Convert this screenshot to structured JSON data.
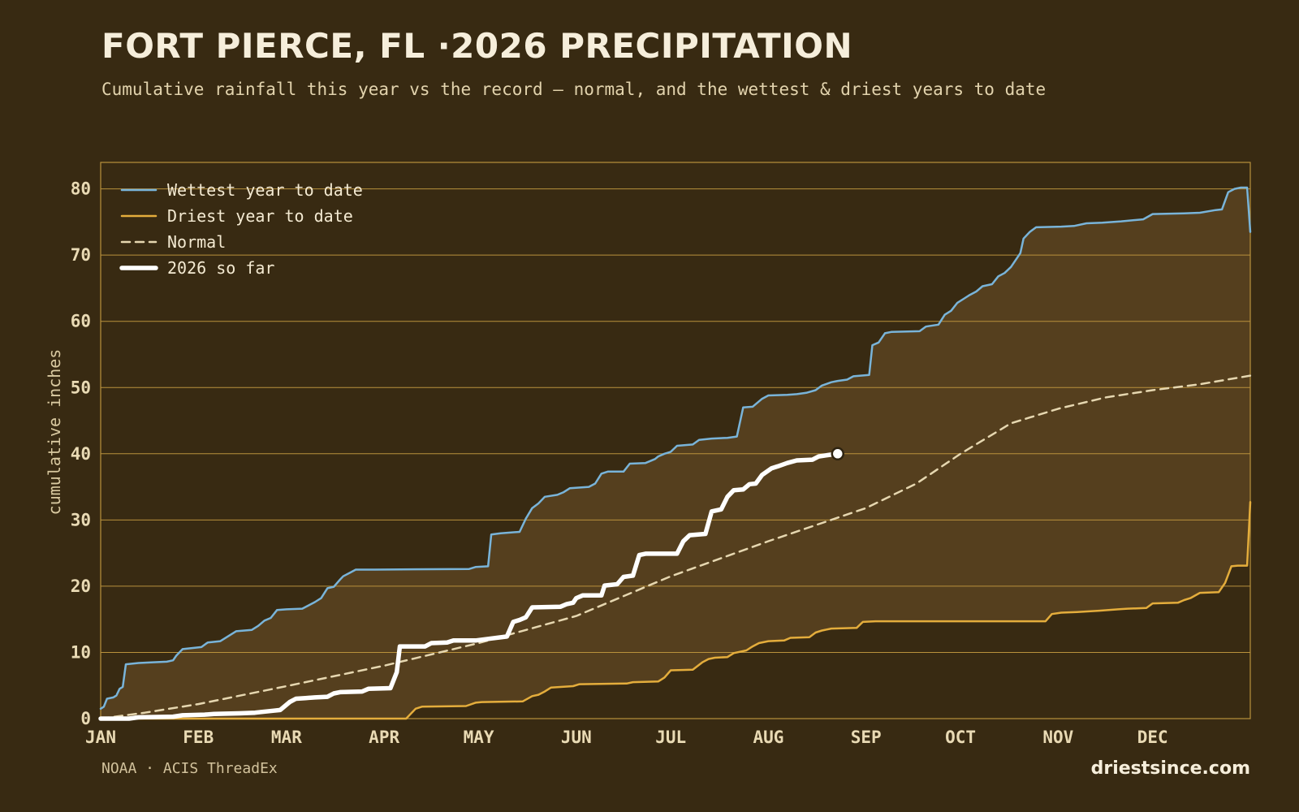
{
  "header": {
    "title": "FORT PIERCE, FL ·2026 PRECIPITATION",
    "subtitle": "Cumulative rainfall this year vs the record — normal, and the wettest & driest years to date"
  },
  "footer": {
    "source": "NOAA · ACIS ThreadEx",
    "brand": "driestsince.com"
  },
  "colors": {
    "wettest": "#79b4d9",
    "driest": "#e4ad3c",
    "normal": "#e6d7b0",
    "current": "#ffffff",
    "band": "#553f1e",
    "grid": "#b9913c",
    "background": "#382a12"
  },
  "chart_data": {
    "type": "line",
    "title": "FORT PIERCE, FL ·2026 PRECIPITATION",
    "subtitle": "Cumulative rainfall this year vs the record — normal, and the wettest & driest years to date",
    "ylabel": "cumulative inches",
    "xlabel": "",
    "x_unit": "day of year",
    "xlim": [
      1,
      366
    ],
    "ylim": [
      0,
      84
    ],
    "yticks": [
      0,
      10,
      20,
      30,
      40,
      50,
      60,
      70,
      80
    ],
    "month_ticks": [
      {
        "label": "JAN",
        "day": 1
      },
      {
        "label": "FEB",
        "day": 32
      },
      {
        "label": "MAR",
        "day": 60
      },
      {
        "label": "APR",
        "day": 91
      },
      {
        "label": "MAY",
        "day": 121
      },
      {
        "label": "JUN",
        "day": 152
      },
      {
        "label": "JUL",
        "day": 182
      },
      {
        "label": "AUG",
        "day": 213
      },
      {
        "label": "SEP",
        "day": 244
      },
      {
        "label": "OCT",
        "day": 274
      },
      {
        "label": "NOV",
        "day": 305
      },
      {
        "label": "DEC",
        "day": 335
      }
    ],
    "grid": "horizontal",
    "legend_position": "top-left",
    "series": [
      {
        "name": "Wettest year to date",
        "key": "wettest",
        "points": [
          [
            1,
            1.5
          ],
          [
            2,
            1.8
          ],
          [
            3,
            3.0
          ],
          [
            5,
            3.2
          ],
          [
            6,
            3.5
          ],
          [
            7,
            4.5
          ],
          [
            8,
            4.8
          ],
          [
            9,
            8.2
          ],
          [
            13,
            8.4
          ],
          [
            17,
            8.5
          ],
          [
            22,
            8.6
          ],
          [
            24,
            8.8
          ],
          [
            25,
            9.5
          ],
          [
            27,
            10.5
          ],
          [
            33,
            10.8
          ],
          [
            35,
            11.5
          ],
          [
            39,
            11.7
          ],
          [
            41,
            12.3
          ],
          [
            44,
            13.2
          ],
          [
            49,
            13.4
          ],
          [
            51,
            14.0
          ],
          [
            53,
            14.8
          ],
          [
            55,
            15.2
          ],
          [
            57,
            16.4
          ],
          [
            60,
            16.5
          ],
          [
            65,
            16.6
          ],
          [
            69,
            17.6
          ],
          [
            71,
            18.2
          ],
          [
            73,
            19.7
          ],
          [
            75,
            19.9
          ],
          [
            77,
            21.0
          ],
          [
            78,
            21.5
          ],
          [
            80,
            22.0
          ],
          [
            82,
            22.5
          ],
          [
            88,
            22.5
          ],
          [
            118,
            22.6
          ],
          [
            120,
            22.9
          ],
          [
            124,
            23.0
          ],
          [
            125,
            27.8
          ],
          [
            128,
            28.0
          ],
          [
            134,
            28.2
          ],
          [
            136,
            30.2
          ],
          [
            138,
            31.8
          ],
          [
            140,
            32.5
          ],
          [
            142,
            33.5
          ],
          [
            146,
            33.8
          ],
          [
            148,
            34.2
          ],
          [
            150,
            34.8
          ],
          [
            156,
            35.0
          ],
          [
            158,
            35.5
          ],
          [
            160,
            37.0
          ],
          [
            162,
            37.3
          ],
          [
            167,
            37.3
          ],
          [
            169,
            38.5
          ],
          [
            174,
            38.6
          ],
          [
            177,
            39.2
          ],
          [
            178,
            39.6
          ],
          [
            180,
            40.0
          ],
          [
            182,
            40.3
          ],
          [
            184,
            41.2
          ],
          [
            189,
            41.4
          ],
          [
            191,
            42.1
          ],
          [
            195,
            42.3
          ],
          [
            200,
            42.4
          ],
          [
            203,
            42.6
          ],
          [
            205,
            47.0
          ],
          [
            208,
            47.1
          ],
          [
            211,
            48.3
          ],
          [
            213,
            48.8
          ],
          [
            219,
            48.9
          ],
          [
            222,
            49.0
          ],
          [
            225,
            49.2
          ],
          [
            228,
            49.6
          ],
          [
            230,
            50.3
          ],
          [
            233,
            50.8
          ],
          [
            235,
            51.0
          ],
          [
            238,
            51.2
          ],
          [
            240,
            51.7
          ],
          [
            245,
            51.9
          ],
          [
            246,
            56.4
          ],
          [
            248,
            56.8
          ],
          [
            250,
            58.2
          ],
          [
            252,
            58.4
          ],
          [
            261,
            58.5
          ],
          [
            263,
            59.2
          ],
          [
            267,
            59.5
          ],
          [
            269,
            61.0
          ],
          [
            271,
            61.6
          ],
          [
            273,
            62.8
          ],
          [
            275,
            63.4
          ],
          [
            277,
            64.0
          ],
          [
            279,
            64.5
          ],
          [
            281,
            65.3
          ],
          [
            284,
            65.6
          ],
          [
            286,
            66.8
          ],
          [
            288,
            67.3
          ],
          [
            290,
            68.2
          ],
          [
            293,
            70.3
          ],
          [
            294,
            72.5
          ],
          [
            296,
            73.5
          ],
          [
            298,
            74.2
          ],
          [
            306,
            74.3
          ],
          [
            310,
            74.4
          ],
          [
            314,
            74.8
          ],
          [
            319,
            74.9
          ],
          [
            325,
            75.1
          ],
          [
            332,
            75.4
          ],
          [
            335,
            76.2
          ],
          [
            345,
            76.3
          ],
          [
            350,
            76.4
          ],
          [
            355,
            76.8
          ],
          [
            357,
            76.9
          ],
          [
            359,
            79.5
          ],
          [
            361,
            80.0
          ],
          [
            363,
            80.2
          ],
          [
            365,
            80.2
          ],
          [
            366,
            73.5
          ]
        ]
      },
      {
        "name": "Driest year to date",
        "key": "driest",
        "points": [
          [
            1,
            0.0
          ],
          [
            98,
            0.0
          ],
          [
            101,
            1.5
          ],
          [
            103,
            1.8
          ],
          [
            117,
            1.9
          ],
          [
            120,
            2.4
          ],
          [
            122,
            2.5
          ],
          [
            135,
            2.6
          ],
          [
            138,
            3.4
          ],
          [
            140,
            3.6
          ],
          [
            142,
            4.1
          ],
          [
            144,
            4.7
          ],
          [
            151,
            4.9
          ],
          [
            153,
            5.2
          ],
          [
            168,
            5.3
          ],
          [
            170,
            5.5
          ],
          [
            178,
            5.6
          ],
          [
            180,
            6.2
          ],
          [
            182,
            7.3
          ],
          [
            189,
            7.4
          ],
          [
            192,
            8.5
          ],
          [
            194,
            9.0
          ],
          [
            196,
            9.2
          ],
          [
            200,
            9.3
          ],
          [
            202,
            9.9
          ],
          [
            206,
            10.3
          ],
          [
            208,
            10.9
          ],
          [
            210,
            11.4
          ],
          [
            213,
            11.7
          ],
          [
            218,
            11.8
          ],
          [
            220,
            12.2
          ],
          [
            226,
            12.3
          ],
          [
            228,
            13.0
          ],
          [
            230,
            13.3
          ],
          [
            233,
            13.6
          ],
          [
            241,
            13.7
          ],
          [
            243,
            14.6
          ],
          [
            247,
            14.7
          ],
          [
            301,
            14.7
          ],
          [
            303,
            15.8
          ],
          [
            306,
            16.0
          ],
          [
            311,
            16.1
          ],
          [
            318,
            16.3
          ],
          [
            324,
            16.5
          ],
          [
            327,
            16.6
          ],
          [
            333,
            16.7
          ],
          [
            335,
            17.4
          ],
          [
            343,
            17.5
          ],
          [
            345,
            17.9
          ],
          [
            347,
            18.2
          ],
          [
            350,
            19.0
          ],
          [
            356,
            19.1
          ],
          [
            358,
            20.5
          ],
          [
            360,
            23.0
          ],
          [
            362,
            23.1
          ],
          [
            365,
            23.1
          ],
          [
            366,
            32.7
          ]
        ]
      },
      {
        "name": "Normal",
        "key": "normal",
        "points": [
          [
            1,
            0.0
          ],
          [
            15,
            0.9
          ],
          [
            32,
            2.2
          ],
          [
            60,
            4.9
          ],
          [
            91,
            8.0
          ],
          [
            121,
            11.4
          ],
          [
            152,
            15.5
          ],
          [
            182,
            21.5
          ],
          [
            213,
            26.8
          ],
          [
            244,
            31.8
          ],
          [
            260,
            35.5
          ],
          [
            274,
            40.0
          ],
          [
            290,
            44.6
          ],
          [
            305,
            46.8
          ],
          [
            320,
            48.5
          ],
          [
            335,
            49.6
          ],
          [
            350,
            50.5
          ],
          [
            366,
            51.8
          ]
        ]
      },
      {
        "name": "2026 so far",
        "key": "current",
        "points": [
          [
            1,
            0.0
          ],
          [
            10,
            0.0
          ],
          [
            13,
            0.2
          ],
          [
            24,
            0.3
          ],
          [
            27,
            0.5
          ],
          [
            34,
            0.6
          ],
          [
            37,
            0.7
          ],
          [
            45,
            0.8
          ],
          [
            50,
            0.9
          ],
          [
            52,
            1.0
          ],
          [
            56,
            1.2
          ],
          [
            58,
            1.3
          ],
          [
            61,
            2.5
          ],
          [
            63,
            3.0
          ],
          [
            66,
            3.1
          ],
          [
            69,
            3.2
          ],
          [
            73,
            3.3
          ],
          [
            75,
            3.8
          ],
          [
            77,
            4.0
          ],
          [
            84,
            4.1
          ],
          [
            86,
            4.5
          ],
          [
            93,
            4.6
          ],
          [
            95,
            7.0
          ],
          [
            96,
            10.9
          ],
          [
            104,
            10.9
          ],
          [
            106,
            11.4
          ],
          [
            111,
            11.5
          ],
          [
            113,
            11.8
          ],
          [
            120,
            11.8
          ],
          [
            125,
            12.1
          ],
          [
            130,
            12.4
          ],
          [
            132,
            14.6
          ],
          [
            134,
            14.9
          ],
          [
            136,
            15.3
          ],
          [
            138,
            16.8
          ],
          [
            147,
            16.9
          ],
          [
            149,
            17.3
          ],
          [
            151,
            17.5
          ],
          [
            152,
            18.2
          ],
          [
            154,
            18.6
          ],
          [
            160,
            18.6
          ],
          [
            161,
            20.1
          ],
          [
            165,
            20.3
          ],
          [
            167,
            21.4
          ],
          [
            170,
            21.6
          ],
          [
            172,
            24.7
          ],
          [
            174,
            24.9
          ],
          [
            184,
            24.9
          ],
          [
            186,
            26.8
          ],
          [
            188,
            27.7
          ],
          [
            193,
            27.9
          ],
          [
            195,
            31.3
          ],
          [
            198,
            31.6
          ],
          [
            200,
            33.5
          ],
          [
            202,
            34.5
          ],
          [
            205,
            34.6
          ],
          [
            207,
            35.4
          ],
          [
            209,
            35.5
          ],
          [
            211,
            36.8
          ],
          [
            214,
            37.8
          ],
          [
            216,
            38.1
          ],
          [
            219,
            38.6
          ],
          [
            222,
            39.0
          ],
          [
            227,
            39.1
          ],
          [
            229,
            39.6
          ],
          [
            232,
            39.8
          ],
          [
            235,
            40.0
          ]
        ]
      }
    ],
    "current_marker": {
      "x": 235,
      "y": 40.0
    }
  }
}
